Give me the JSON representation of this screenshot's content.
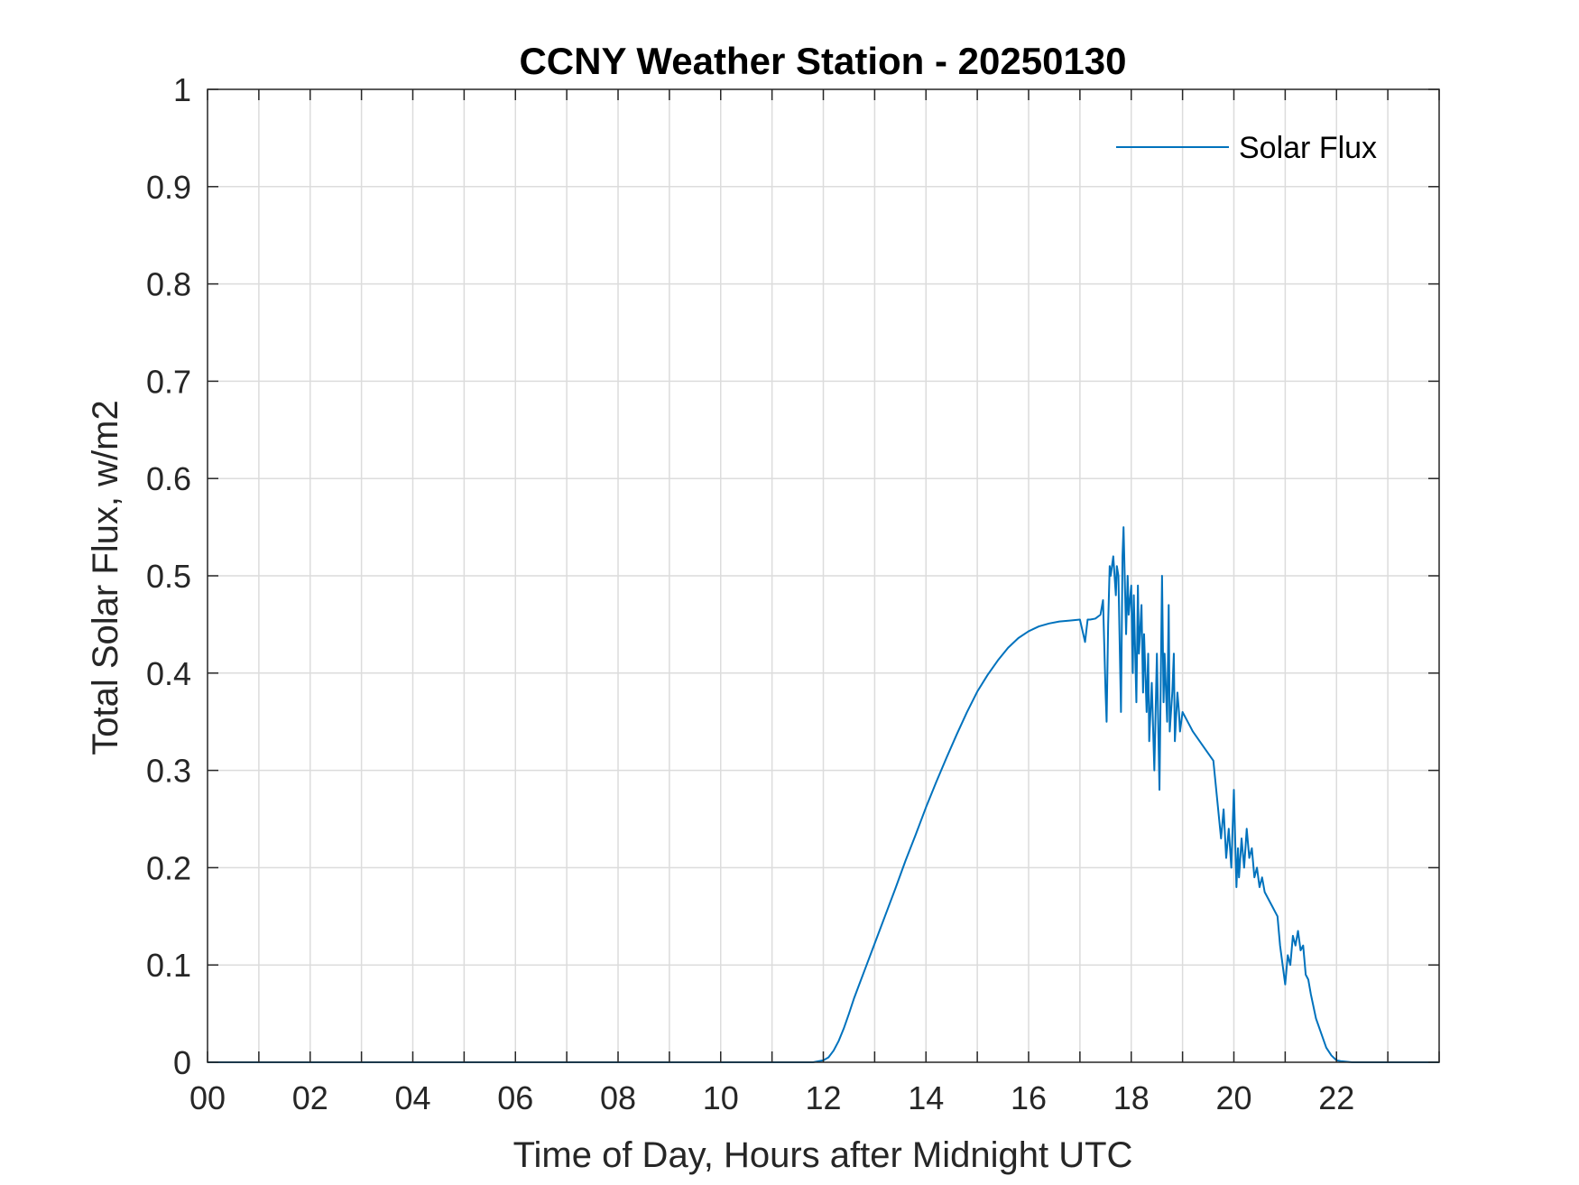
{
  "chart_data": {
    "type": "line",
    "title": "CCNY Weather Station - 20250130",
    "xlabel": "Time of Day, Hours after Midnight UTC",
    "ylabel": "Total Solar Flux, w/m2",
    "xlim": [
      0,
      24
    ],
    "ylim": [
      0,
      1
    ],
    "grid": true,
    "legend_position": "top-right",
    "x_tick_values": [
      0,
      2,
      4,
      6,
      8,
      10,
      12,
      14,
      16,
      18,
      20,
      22
    ],
    "x_tick_labels": [
      "00",
      "02",
      "04",
      "06",
      "08",
      "10",
      "12",
      "14",
      "16",
      "18",
      "20",
      "22"
    ],
    "x_minor_grid_step": 1,
    "y_tick_values": [
      0,
      0.1,
      0.2,
      0.3,
      0.4,
      0.5,
      0.6,
      0.7,
      0.8,
      0.9,
      1
    ],
    "y_tick_labels": [
      "0",
      "0.1",
      "0.2",
      "0.3",
      "0.4",
      "0.5",
      "0.6",
      "0.7",
      "0.8",
      "0.9",
      "1"
    ],
    "colors": {
      "series": "#0072BD",
      "grid": "#dcdcdc",
      "axis": "#262626"
    },
    "series": [
      {
        "name": "Solar Flux",
        "x": [
          0,
          11.8,
          12.0,
          12.1,
          12.2,
          12.3,
          12.4,
          12.5,
          12.6,
          12.7,
          12.8,
          13.0,
          13.2,
          13.4,
          13.6,
          13.8,
          14.0,
          14.2,
          14.4,
          14.6,
          14.8,
          15.0,
          15.2,
          15.4,
          15.6,
          15.8,
          16.0,
          16.2,
          16.4,
          16.6,
          16.8,
          17.0,
          17.1,
          17.15,
          17.2,
          17.3,
          17.4,
          17.45,
          17.5,
          17.52,
          17.55,
          17.58,
          17.6,
          17.65,
          17.7,
          17.72,
          17.75,
          17.8,
          17.83,
          17.85,
          17.9,
          17.93,
          17.95,
          18.0,
          18.03,
          18.05,
          18.1,
          18.13,
          18.15,
          18.2,
          18.23,
          18.25,
          18.3,
          18.33,
          18.35,
          18.4,
          18.45,
          18.5,
          18.55,
          18.6,
          18.63,
          18.65,
          18.7,
          18.73,
          18.75,
          18.8,
          18.83,
          18.85,
          18.9,
          18.93,
          18.95,
          19.0,
          19.05,
          19.1,
          19.15,
          19.2,
          19.4,
          19.6,
          19.75,
          19.8,
          19.85,
          19.9,
          19.95,
          20.0,
          20.05,
          20.08,
          20.1,
          20.15,
          20.2,
          20.25,
          20.3,
          20.35,
          20.4,
          20.45,
          20.5,
          20.55,
          20.6,
          20.65,
          20.7,
          20.75,
          20.8,
          20.85,
          20.9,
          20.95,
          21.0,
          21.05,
          21.1,
          21.15,
          21.2,
          21.25,
          21.3,
          21.35,
          21.4,
          21.45,
          21.5,
          21.6,
          21.7,
          21.8,
          21.9,
          22.0,
          22.1,
          22.3,
          22.6,
          23.0,
          24.0
        ],
        "values": [
          0,
          0,
          0.002,
          0.005,
          0.012,
          0.022,
          0.035,
          0.05,
          0.066,
          0.08,
          0.094,
          0.122,
          0.15,
          0.178,
          0.207,
          0.234,
          0.262,
          0.288,
          0.313,
          0.337,
          0.36,
          0.381,
          0.398,
          0.413,
          0.426,
          0.436,
          0.443,
          0.448,
          0.451,
          0.453,
          0.454,
          0.455,
          0.432,
          0.455,
          0.455,
          0.456,
          0.46,
          0.475,
          0.38,
          0.35,
          0.45,
          0.51,
          0.5,
          0.52,
          0.48,
          0.51,
          0.5,
          0.36,
          0.52,
          0.55,
          0.44,
          0.5,
          0.46,
          0.49,
          0.4,
          0.48,
          0.37,
          0.49,
          0.42,
          0.47,
          0.38,
          0.44,
          0.36,
          0.42,
          0.33,
          0.39,
          0.3,
          0.42,
          0.28,
          0.5,
          0.37,
          0.42,
          0.35,
          0.47,
          0.34,
          0.38,
          0.42,
          0.33,
          0.38,
          0.36,
          0.34,
          0.36,
          0.355,
          0.35,
          0.345,
          0.34,
          0.325,
          0.31,
          0.23,
          0.26,
          0.21,
          0.24,
          0.2,
          0.28,
          0.18,
          0.22,
          0.19,
          0.23,
          0.2,
          0.24,
          0.21,
          0.22,
          0.19,
          0.2,
          0.18,
          0.19,
          0.175,
          0.17,
          0.165,
          0.16,
          0.155,
          0.15,
          0.12,
          0.1,
          0.08,
          0.11,
          0.1,
          0.13,
          0.12,
          0.135,
          0.115,
          0.12,
          0.09,
          0.085,
          0.07,
          0.045,
          0.03,
          0.015,
          0.007,
          0.002,
          0.001,
          0,
          0,
          0,
          0
        ]
      }
    ]
  }
}
